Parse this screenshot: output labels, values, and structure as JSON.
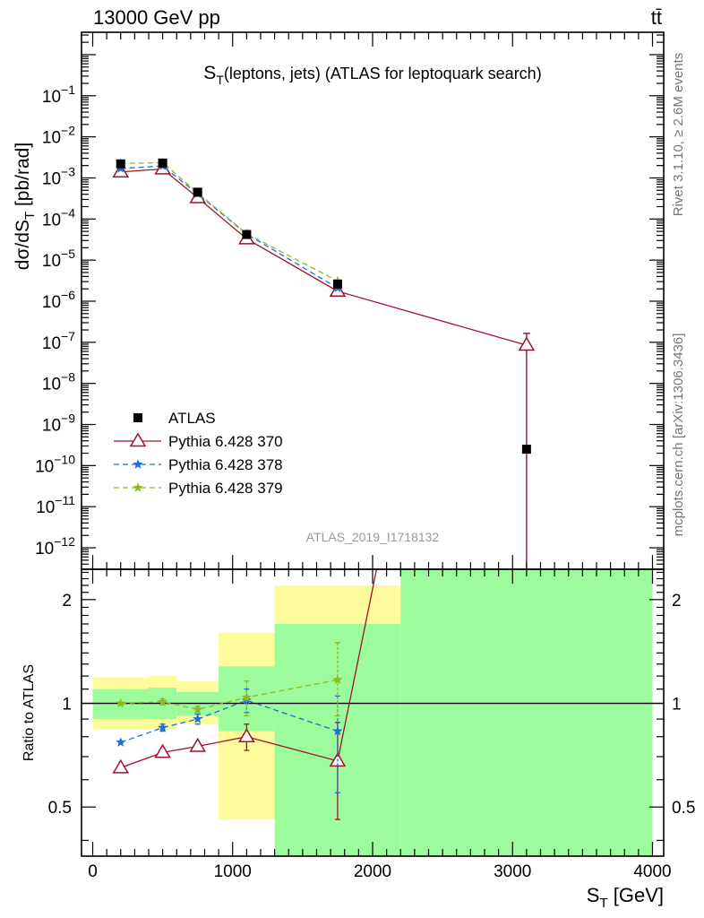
{
  "header": {
    "left": "13000 GeV pp",
    "right": "tt̄"
  },
  "side_labels": {
    "top": "Rivet 3.1.10, ≥ 2.6M events",
    "bottom": "mcplots.cern.ch [arXiv:1306.3436]"
  },
  "chart_data": {
    "type": "line",
    "title": "S_T(leptons, jets) (ATLAS for leptoquark search)",
    "title_main": "S",
    "title_sub": "T",
    "title_rest": "(leptons, jets) (ATLAS for leptoquark search)",
    "watermark": "ATLAS_2019_I1718132",
    "ylabel_top": "dσ/dS_T [pb/rad]",
    "ylabel_top_main": "dσ/dS",
    "ylabel_top_sub": "T",
    "ylabel_top_rest": " [pb/rad]",
    "ylabel_bottom": "Ratio to ATLAS",
    "xlabel": "S_T [GeV]",
    "xlabel_main": "S",
    "xlabel_sub": "T",
    "xlabel_rest": " [GeV]",
    "xlim": [
      -80,
      4080
    ],
    "x_ticks": [
      0,
      1000,
      2000,
      3000,
      4000
    ],
    "x_tick_labels": [
      "0",
      "1000",
      "2000",
      "3000",
      "4000"
    ],
    "top": {
      "scale": "log",
      "ylim": [
        3e-13,
        3.5
      ],
      "tick_labels": [
        {
          "base": "10",
          "exp": "−1",
          "value": 0.1
        },
        {
          "base": "10",
          "exp": "−2",
          "value": 0.01
        },
        {
          "base": "10",
          "exp": "−3",
          "value": 0.001
        },
        {
          "base": "10",
          "exp": "−4",
          "value": 0.0001
        },
        {
          "base": "10",
          "exp": "−5",
          "value": 1e-05
        },
        {
          "base": "10",
          "exp": "−6",
          "value": 1e-06
        },
        {
          "base": "10",
          "exp": "−7",
          "value": 1e-07
        },
        {
          "base": "10",
          "exp": "−8",
          "value": 1e-08
        },
        {
          "base": "10",
          "exp": "−9",
          "value": 1e-09
        },
        {
          "base": "10",
          "exp": "−10",
          "value": 1e-10
        },
        {
          "base": "10",
          "exp": "−11",
          "value": 1e-11
        },
        {
          "base": "10",
          "exp": "−12",
          "value": 1e-12
        }
      ]
    },
    "bottom": {
      "scale": "log",
      "ylim": [
        0.36,
        2.45
      ],
      "ref_line": 1,
      "tick_labels": [
        {
          "label": "0.5",
          "value": 0.5
        },
        {
          "label": "1",
          "value": 1
        },
        {
          "label": "2",
          "value": 2
        }
      ]
    },
    "bins": [
      {
        "x0": 0,
        "x1": 400,
        "x": 200
      },
      {
        "x0": 400,
        "x1": 600,
        "x": 500
      },
      {
        "x0": 600,
        "x1": 900,
        "x": 750
      },
      {
        "x0": 900,
        "x1": 1300,
        "x": 1100
      },
      {
        "x0": 1300,
        "x1": 2200,
        "x": 1750
      },
      {
        "x0": 2200,
        "x1": 4000,
        "x": 3100
      }
    ],
    "data": {
      "name": "ATLAS",
      "color": "#000000",
      "values": [
        0.0022,
        0.0023,
        0.00045,
        4.2e-05,
        2.6e-06,
        2.5e-10
      ],
      "err_lo": [
        0,
        0,
        0,
        0,
        0,
        0
      ],
      "err_hi": [
        0,
        0,
        0,
        0,
        0,
        0
      ]
    },
    "bands": {
      "stat": {
        "color": "#9cfc9c",
        "lo": [
          0.9,
          0.9,
          0.92,
          0.83,
          0.3,
          0.3
        ],
        "hi": [
          1.1,
          1.11,
          1.08,
          1.28,
          1.7,
          2.5
        ]
      },
      "total": {
        "color": "#fcfc9c",
        "lo": [
          0.84,
          0.84,
          0.87,
          0.46,
          0.3,
          0.3
        ],
        "hi": [
          1.19,
          1.2,
          1.16,
          1.6,
          2.2,
          2.5
        ]
      }
    },
    "series": [
      {
        "name": "Pythia 6.428 370",
        "color": "#a0102a",
        "dash": "",
        "marker": "triangle",
        "values": [
          0.0014,
          0.00165,
          0.00033,
          3.3e-05,
          1.75e-06,
          8.5e-08
        ],
        "err_lo": [
          0,
          0,
          0,
          0,
          0,
          8.5e-08
        ],
        "err_hi": [
          0,
          0,
          0,
          0,
          0,
          8e-08
        ],
        "ratio": [
          0.65,
          0.72,
          0.75,
          0.8,
          0.68,
          340
        ],
        "ratio_err_lo": [
          0,
          0,
          0.02,
          0.07,
          0.22,
          0
        ],
        "ratio_err_hi": [
          0,
          0,
          0.02,
          0.07,
          0.2,
          0
        ]
      },
      {
        "name": "Pythia 6.428 378",
        "color": "#1e6ed6",
        "dash": "6,4",
        "marker": "star",
        "values": [
          0.0017,
          0.00195,
          0.00041,
          4.3e-05,
          2.1e-06,
          0
        ],
        "err_lo": [
          0,
          0,
          0,
          0,
          0,
          0
        ],
        "err_hi": [
          0,
          0,
          0,
          0,
          0,
          0
        ],
        "ratio": [
          0.77,
          0.85,
          0.9,
          1.02,
          0.83,
          null
        ],
        "ratio_err_lo": [
          0,
          0.02,
          0.03,
          0.08,
          0.28,
          0
        ],
        "ratio_err_hi": [
          0,
          0.02,
          0.03,
          0.08,
          0.22,
          0
        ]
      },
      {
        "name": "Pythia 6.428 379",
        "color": "#8cbc1e",
        "dash": "6,4",
        "marker": "star",
        "values": [
          0.00225,
          0.00235,
          0.00043,
          4.4e-05,
          3.1e-06,
          0
        ],
        "err_lo": [
          0,
          0,
          0,
          0,
          0,
          0
        ],
        "err_hi": [
          0,
          0,
          0,
          0,
          0,
          0
        ],
        "ratio": [
          1.0,
          1.01,
          0.96,
          1.04,
          1.17,
          null
        ],
        "ratio_err_lo": [
          0,
          0.02,
          0.02,
          0.12,
          0.25,
          0
        ],
        "ratio_err_hi": [
          0,
          0.02,
          0.02,
          0.12,
          0.33,
          0
        ]
      }
    ]
  }
}
